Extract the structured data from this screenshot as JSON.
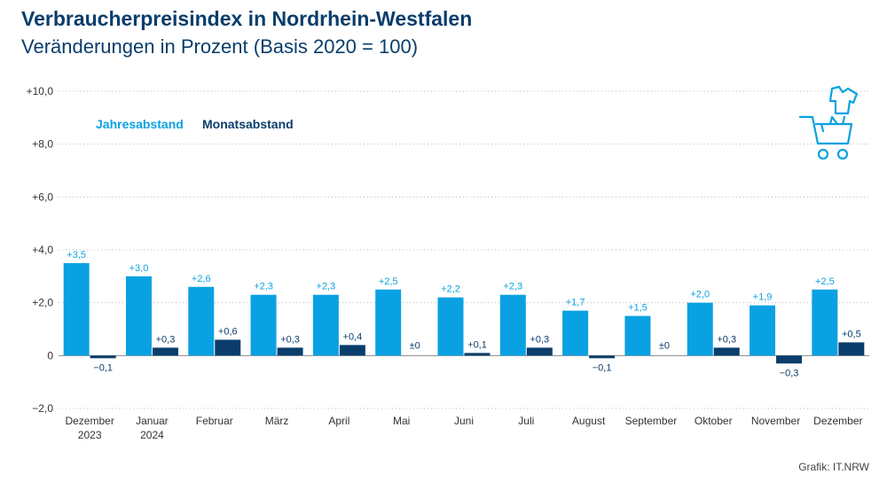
{
  "header": {
    "title": "Verbraucherpreisindex in Nordrhein-Westfalen",
    "subtitle": "Veränderungen in Prozent (Basis 2020 = 100)"
  },
  "footer": {
    "credit": "Grafik: IT.NRW"
  },
  "icon": "shopping-cart-with-shirt-icon",
  "colors": {
    "jahres": "#0aa1e2",
    "monats": "#0a3d6b",
    "text": "#333333",
    "label_jahres": "#0aa1e2"
  },
  "chart_data": {
    "type": "bar",
    "title": "Verbraucherpreisindex in Nordrhein-Westfalen",
    "subtitle": "Veränderungen in Prozent (Basis 2020 = 100)",
    "categories": [
      "Dezember\n2023",
      "Januar\n2024",
      "Februar",
      "März",
      "April",
      "Mai",
      "Juni",
      "Juli",
      "August",
      "September",
      "Oktober",
      "November",
      "Dezember"
    ],
    "series": [
      {
        "name": "Jahresabstand",
        "values": [
          3.5,
          3.0,
          2.6,
          2.3,
          2.3,
          2.5,
          2.2,
          2.3,
          1.7,
          1.5,
          2.0,
          1.9,
          2.5
        ],
        "labels": [
          "+3,5",
          "+3,0",
          "+2,6",
          "+2,3",
          "+2,3",
          "+2,5",
          "+2,2",
          "+2,3",
          "+1,7",
          "+1,5",
          "+2,0",
          "+1,9",
          "+2,5"
        ]
      },
      {
        "name": "Monatsabstand",
        "values": [
          -0.1,
          0.3,
          0.6,
          0.3,
          0.4,
          0.0,
          0.1,
          0.3,
          -0.1,
          0.0,
          0.3,
          -0.3,
          0.5
        ],
        "labels": [
          "−0,1",
          "+0,3",
          "+0,6",
          "+0,3",
          "+0,4",
          "±0",
          "+0,1",
          "+0,3",
          "−0,1",
          "±0",
          "+0,3",
          "−0,3",
          "+0,5"
        ]
      }
    ],
    "ylim": [
      -2.0,
      10.0
    ],
    "yticks": [
      -2,
      0,
      2,
      4,
      6,
      8,
      10
    ],
    "ytick_labels": [
      "−2,0",
      "0",
      "+2,0",
      "+4,0",
      "+6,0",
      "+8,0",
      "+10,0"
    ],
    "grid": true,
    "legend": "top-left"
  }
}
